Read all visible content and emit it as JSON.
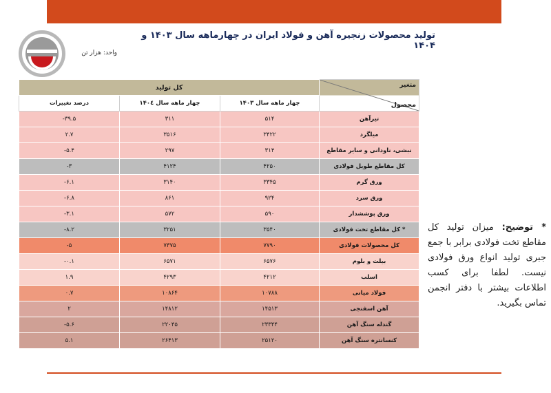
{
  "header": {
    "title": "تولید محصولات زنجیره آهن و فولاد ایران در چهارماهه سال ۱۴۰۳ و ۱۴۰۴",
    "unit": "واحد: هزار تن"
  },
  "table": {
    "corner_top": "متغیر",
    "corner_bottom": "محصول",
    "group_header": "کل تولید",
    "columns": [
      "چهار ماهه سال ۱۴۰۳",
      "چهار ماهه سال ۱۴۰٤",
      "درصد تغییرات"
    ],
    "rows": [
      {
        "label": "تیرآهن",
        "v1403": "۵۱۴",
        "v1404": "۳۱۱",
        "change": "-۳۹.۵"
      },
      {
        "label": "میلگرد",
        "v1403": "۳۴۲۲",
        "v1404": "۳۵۱۶",
        "change": "۲.۷"
      },
      {
        "label": "نبشی، ناودانی و سایر مقاطع",
        "v1403": "۳۱۴",
        "v1404": "۲۹۷",
        "change": "-۵.۴"
      },
      {
        "label": "کل مقاطع طویل فولادی",
        "v1403": "۴۲۵۰",
        "v1404": "۴۱۲۴",
        "change": "-۳"
      },
      {
        "label": "ورق گرم",
        "v1403": "۳۳۴۵",
        "v1404": "۳۱۴۰",
        "change": "-۶.۱"
      },
      {
        "label": "ورق سرد",
        "v1403": "۹۲۴",
        "v1404": "۸۶۱",
        "change": "-۶.۸"
      },
      {
        "label": "ورق پوششدار",
        "v1403": "۵۹۰",
        "v1404": "۵۷۲",
        "change": "-۳.۱"
      },
      {
        "label": "* کل مقاطع تخت فولادی",
        "v1403": "۳۵۴۰",
        "v1404": "۳۲۵۱",
        "change": "-۸.۲"
      },
      {
        "label": "کل محصولات فولادی",
        "v1403": "۷۷۹۰",
        "v1404": "۷۳۷۵",
        "change": "-۵"
      },
      {
        "label": "بیلت و بلوم",
        "v1403": "۶۵۷۶",
        "v1404": "۶۵۷۱",
        "change": "-۰.۱"
      },
      {
        "label": "اسلب",
        "v1403": "۴۲۱۲",
        "v1404": "۴۲۹۳",
        "change": "۱.۹"
      },
      {
        "label": "فولاد میانی",
        "v1403": "۱۰۷۸۸",
        "v1404": "۱۰۸۶۴",
        "change": "۰.۷"
      },
      {
        "label": "آهن اسفنجی",
        "v1403": "۱۴۵۱۳",
        "v1404": "۱۴۸۱۲",
        "change": "۲"
      },
      {
        "label": "گندله سنگ آهن",
        "v1403": "۲۳۳۴۴",
        "v1404": "۲۲۰۴۵",
        "change": "-۵.۶"
      },
      {
        "label": "کنسانتره سنگ آهن",
        "v1403": "۲۵۱۲۰",
        "v1404": "۲۶۴۱۳",
        "change": "۵.۱"
      }
    ]
  },
  "note": {
    "heading": "* توضیح:",
    "text": "میزان تولید کل مقاطع تخت فولادی برابر با جمع جبری تولید انواع ورق فولادی نیست. لطفا برای کسب اطلاعات بیشتر با دفتر انجمن تماس بگیرید."
  },
  "colors": {
    "brand_bar": "#d24a1c",
    "header_tan": "#c2b99a",
    "row_pink": "#f7c6c2",
    "row_gray": "#bdbdbd",
    "row_orange": "#f08a6a"
  },
  "icons": {
    "logo": "association-logo"
  }
}
